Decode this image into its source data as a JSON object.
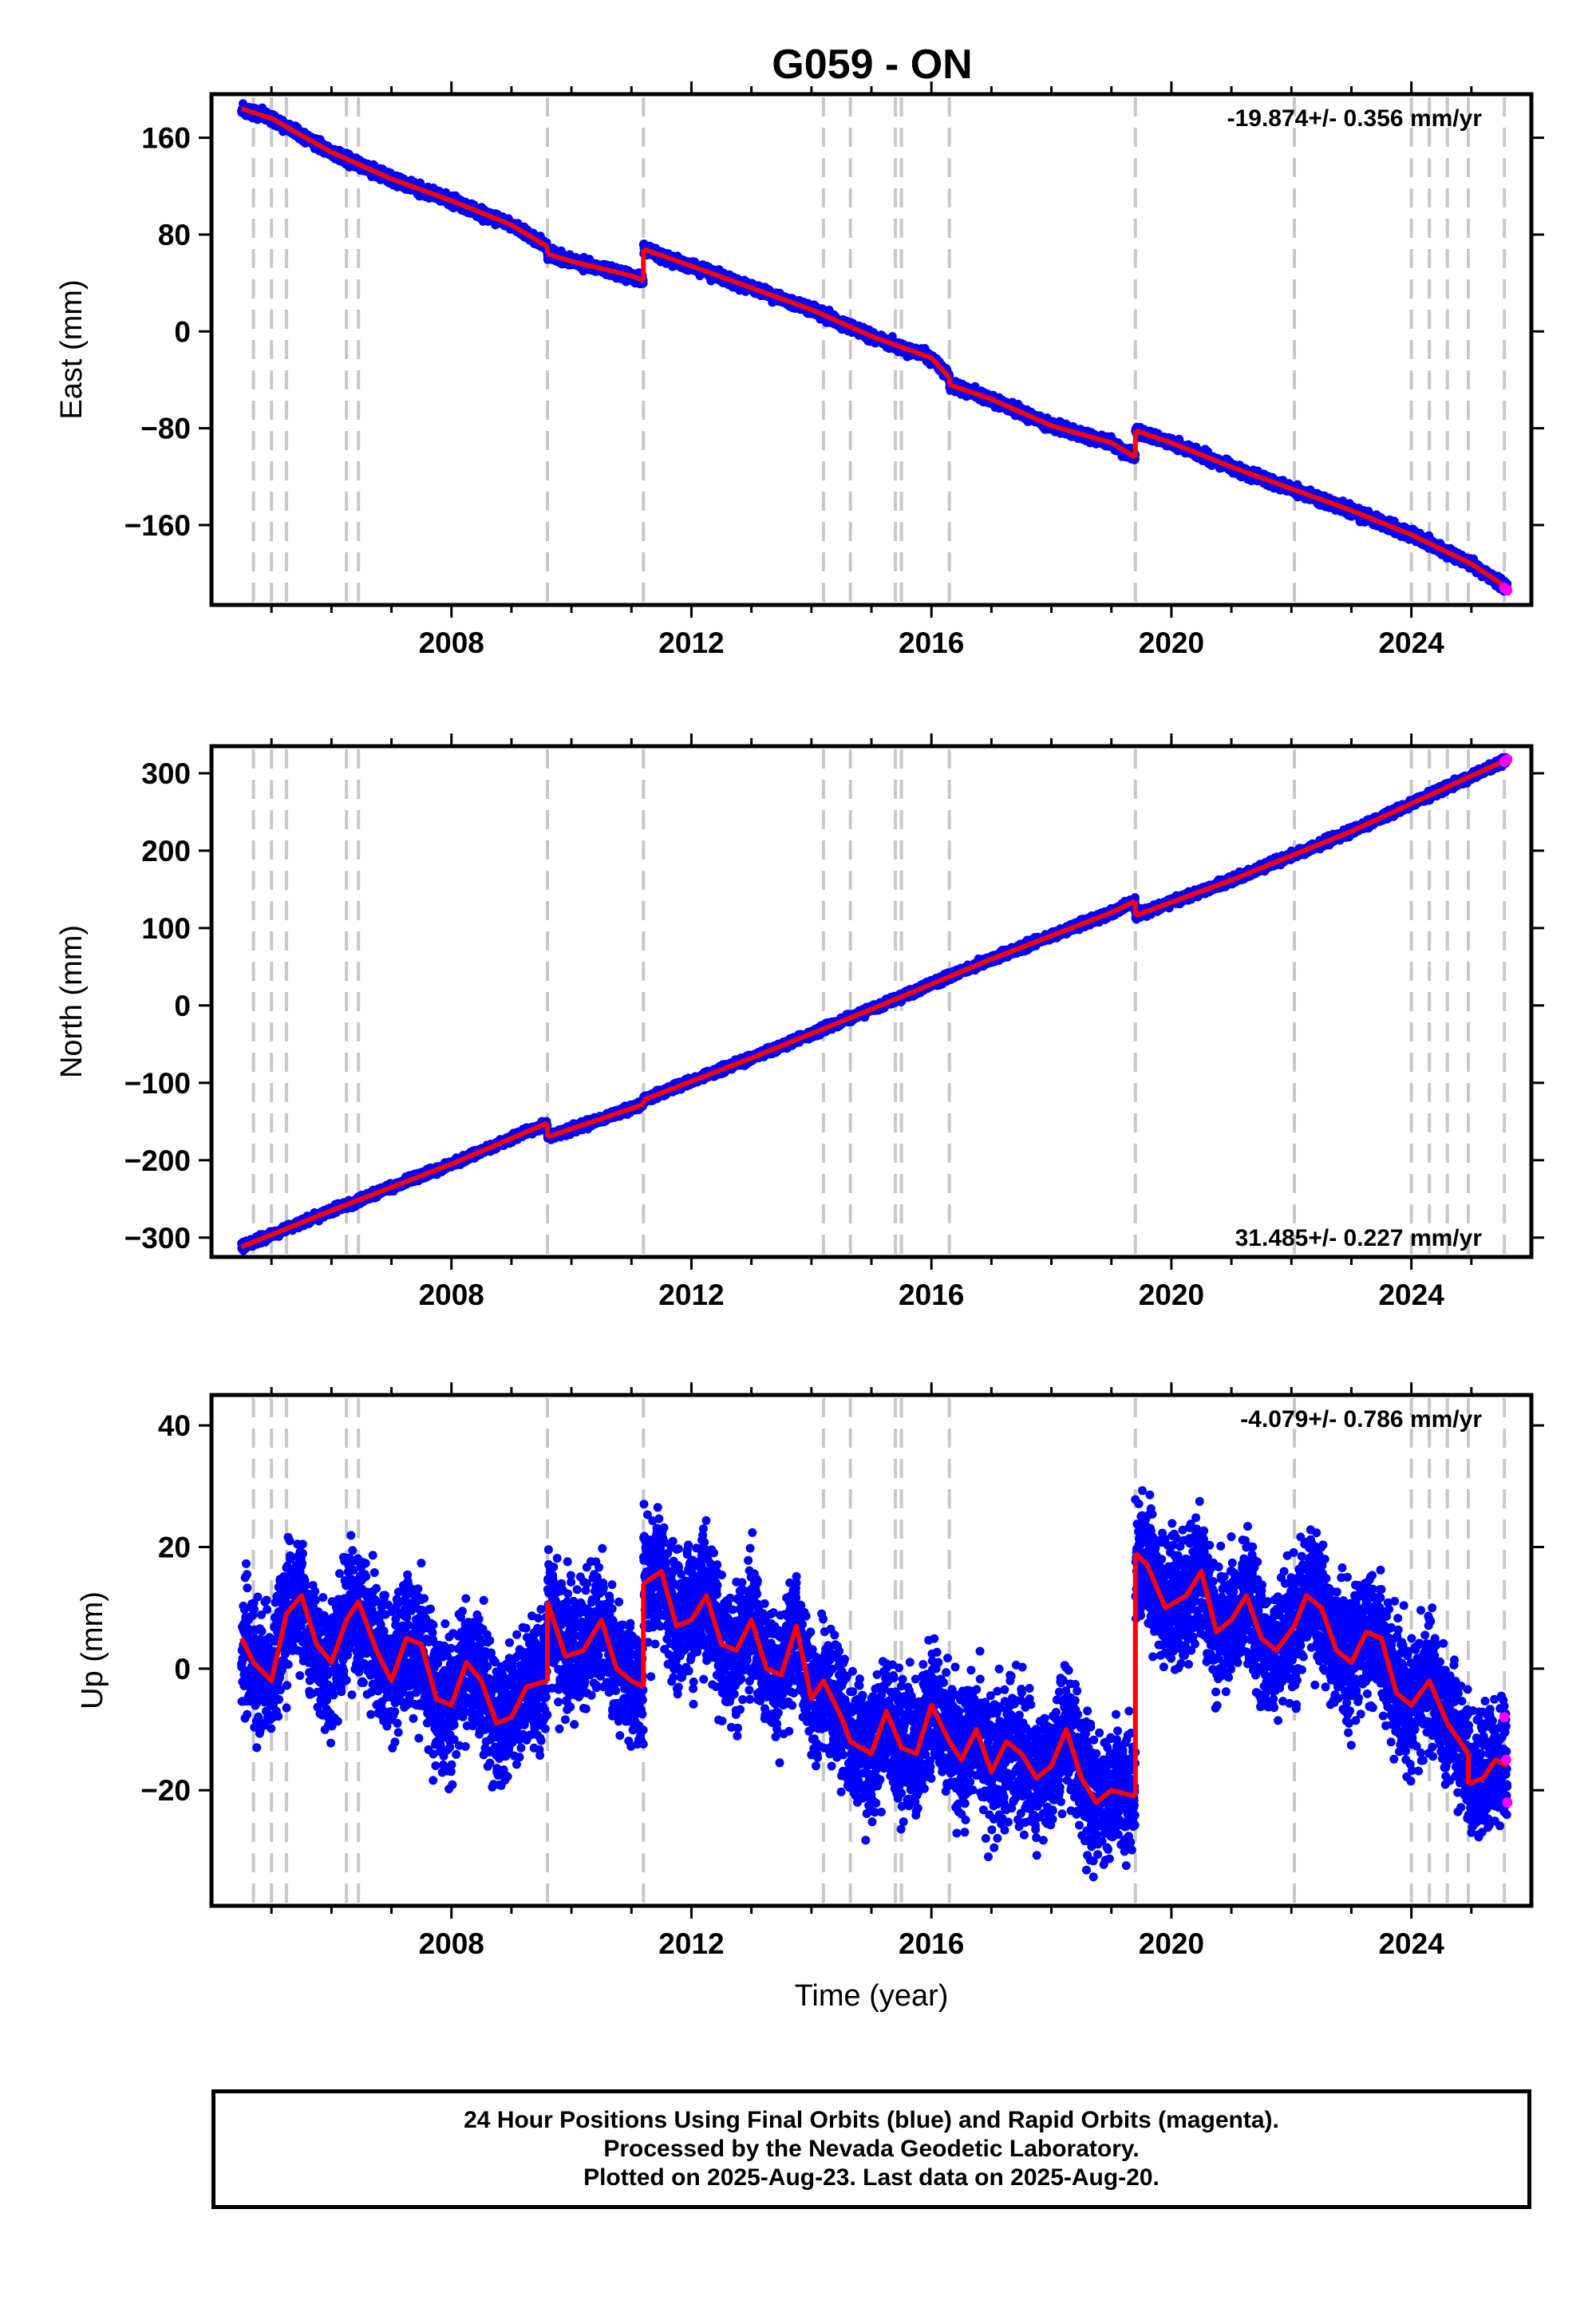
{
  "title": "G059 - ON",
  "colors": {
    "final_orbits": "#0000ff",
    "rapid_orbits": "#ff00ff",
    "model": "#ff0000",
    "event_lines": "#c8c8c8"
  },
  "footer": {
    "line1": "24 Hour Positions Using Final Orbits (blue) and Rapid Orbits (magenta).",
    "line2": "Processed by the Nevada Geodetic Laboratory.",
    "line3": "Plotted on 2025-Aug-23. Last data on 2025-Aug-20."
  },
  "chart_data": [
    {
      "type": "scatter",
      "component": "east",
      "ylabel": "East (mm)",
      "xlabel": "",
      "xlim": [
        2004.0,
        2026.0
      ],
      "ylim": [
        -226,
        196
      ],
      "xticks": [
        "2008",
        "2012",
        "2016",
        "2020",
        "2024"
      ],
      "yticks": [
        "160",
        "80",
        "0",
        "−80",
        "−160"
      ],
      "rate": "-19.874+/- 0.356 mm/yr",
      "rate_position": "top-right",
      "event_lines": [
        2004.7,
        2005.0,
        2005.25,
        2006.25,
        2006.45,
        2009.6,
        2011.2,
        2014.2,
        2014.65,
        2015.4,
        2015.5,
        2016.3,
        2019.4,
        2022.05,
        2024.0,
        2024.3,
        2024.6,
        2024.95,
        2025.55
      ],
      "model_segments": [
        {
          "x": [
            2004.5,
            2005.0,
            2006.0,
            2007.0,
            2008.0,
            2009.0,
            2009.6
          ],
          "y": [
            184,
            176,
            148,
            126,
            108,
            88,
            70
          ]
        },
        {
          "x": [
            2009.6,
            2010.0,
            2010.5,
            2011.0,
            2011.2
          ],
          "y": [
            64,
            58,
            52,
            46,
            42
          ]
        },
        {
          "x": [
            2011.2,
            2012.0,
            2013.0,
            2014.0,
            2015.0,
            2016.0,
            2016.3
          ],
          "y": [
            68,
            54,
            36,
            18,
            -4,
            -22,
            -38
          ]
        },
        {
          "x": [
            2016.3,
            2017.0,
            2018.0,
            2019.0,
            2019.4
          ],
          "y": [
            -44,
            -56,
            -78,
            -92,
            -104
          ]
        },
        {
          "x": [
            2019.4,
            2020.0,
            2021.0,
            2022.0,
            2023.0,
            2024.0,
            2025.0,
            2025.6
          ],
          "y": [
            -82,
            -92,
            -112,
            -130,
            -148,
            -168,
            -192,
            -212
          ]
        }
      ],
      "rapid_points": [
        {
          "x": 2025.55,
          "y": -212
        },
        {
          "x": 2025.6,
          "y": -214
        }
      ]
    },
    {
      "type": "scatter",
      "component": "north",
      "ylabel": "North (mm)",
      "xlabel": "",
      "xlim": [
        2004.0,
        2026.0
      ],
      "ylim": [
        -325,
        335
      ],
      "xticks": [
        "2008",
        "2012",
        "2016",
        "2020",
        "2024"
      ],
      "yticks": [
        "300",
        "200",
        "100",
        "0",
        "−100",
        "−200",
        "−300"
      ],
      "rate": "31.485+/- 0.227 mm/yr",
      "rate_position": "bottom-right",
      "event_lines": [
        2004.7,
        2005.0,
        2005.25,
        2006.25,
        2006.45,
        2009.6,
        2011.2,
        2014.2,
        2014.65,
        2015.4,
        2015.5,
        2016.3,
        2019.4,
        2022.05,
        2024.0,
        2024.3,
        2024.6,
        2024.95,
        2025.55
      ],
      "model_segments": [
        {
          "x": [
            2004.5,
            2006.0,
            2008.0,
            2009.6
          ],
          "y": [
            -312,
            -265,
            -205,
            -152
          ]
        },
        {
          "x": [
            2009.6,
            2011.2
          ],
          "y": [
            -170,
            -128
          ]
        },
        {
          "x": [
            2011.2,
            2013.0,
            2015.0,
            2017.0,
            2019.0,
            2019.4
          ],
          "y": [
            -122,
            -68,
            -5,
            60,
            120,
            135
          ]
        },
        {
          "x": [
            2019.4,
            2021.0,
            2023.0,
            2025.6
          ],
          "y": [
            116,
            162,
            225,
            318
          ]
        }
      ],
      "rapid_points": [
        {
          "x": 2025.55,
          "y": 315
        },
        {
          "x": 2025.6,
          "y": 318
        }
      ]
    },
    {
      "type": "scatter",
      "component": "up",
      "ylabel": "Up (mm)",
      "xlabel": "Time (year)",
      "xlim": [
        2004.0,
        2026.0
      ],
      "ylim": [
        -39,
        45
      ],
      "xticks": [
        "2008",
        "2012",
        "2016",
        "2020",
        "2024"
      ],
      "yticks": [
        "40",
        "20",
        "0",
        "−20"
      ],
      "rate": "-4.079+/- 0.786 mm/yr",
      "rate_position": "top-right",
      "event_lines": [
        2004.7,
        2005.0,
        2005.25,
        2006.25,
        2006.45,
        2009.6,
        2011.2,
        2014.2,
        2014.65,
        2015.4,
        2015.5,
        2016.3,
        2019.4,
        2022.05,
        2024.0,
        2024.3,
        2024.6,
        2024.95,
        2025.55
      ],
      "model_segments": [
        {
          "x": [
            2004.5,
            2004.7,
            2005.0,
            2005.25,
            2005.5,
            2005.75,
            2006.0,
            2006.25,
            2006.45,
            2006.75,
            2007.0,
            2007.25,
            2007.5,
            2007.75,
            2008.0,
            2008.25,
            2008.5,
            2008.75,
            2009.0,
            2009.25,
            2009.6
          ],
          "y": [
            5,
            1,
            -2,
            9,
            12,
            4,
            1,
            8,
            11,
            3,
            -2,
            5,
            4,
            -5,
            -6,
            1,
            -2,
            -9,
            -8,
            -3,
            -2
          ]
        },
        {
          "x": [
            2009.6,
            2009.9,
            2010.2,
            2010.5,
            2010.75,
            2011.0,
            2011.2
          ],
          "y": [
            11,
            2,
            3,
            8,
            0,
            -2,
            -3
          ]
        },
        {
          "x": [
            2011.2,
            2011.5,
            2011.75,
            2012.0,
            2012.25,
            2012.5,
            2012.75,
            2013.0,
            2013.25,
            2013.5,
            2013.75,
            2014.0,
            2014.2,
            2014.5,
            2014.65,
            2015.0,
            2015.25,
            2015.5,
            2015.75,
            2016.0,
            2016.3,
            2016.5,
            2016.75,
            2017.0,
            2017.25,
            2017.5,
            2017.75,
            2018.0,
            2018.25,
            2018.5,
            2018.75,
            2019.0,
            2019.4
          ],
          "y": [
            14,
            16,
            7,
            8,
            12,
            4,
            3,
            8,
            0,
            -1,
            7,
            -5,
            -2,
            -8,
            -12,
            -14,
            -7,
            -13,
            -14,
            -6,
            -12,
            -15,
            -10,
            -17,
            -12,
            -14,
            -18,
            -16,
            -10,
            -18,
            -22,
            -20,
            -21
          ]
        },
        {
          "x": [
            2019.4,
            2019.6,
            2019.9,
            2020.25,
            2020.5,
            2020.75,
            2021.0,
            2021.25,
            2021.5,
            2021.75,
            2022.05,
            2022.25,
            2022.5,
            2022.75,
            2023.0,
            2023.25,
            2023.5,
            2023.75,
            2024.0,
            2024.3,
            2024.6,
            2024.95
          ],
          "y": [
            19,
            17,
            10,
            12,
            16,
            6,
            8,
            12,
            5,
            3,
            7,
            12,
            10,
            3,
            1,
            6,
            5,
            -4,
            -6,
            -2,
            -9,
            -14
          ]
        },
        {
          "x": [
            2024.95,
            2025.2,
            2025.4,
            2025.6
          ],
          "y": [
            -19,
            -18,
            -15,
            -16
          ]
        }
      ],
      "rapid_points": [
        {
          "x": 2025.55,
          "y": -8
        },
        {
          "x": 2025.58,
          "y": -15
        },
        {
          "x": 2025.6,
          "y": -22
        }
      ]
    }
  ]
}
